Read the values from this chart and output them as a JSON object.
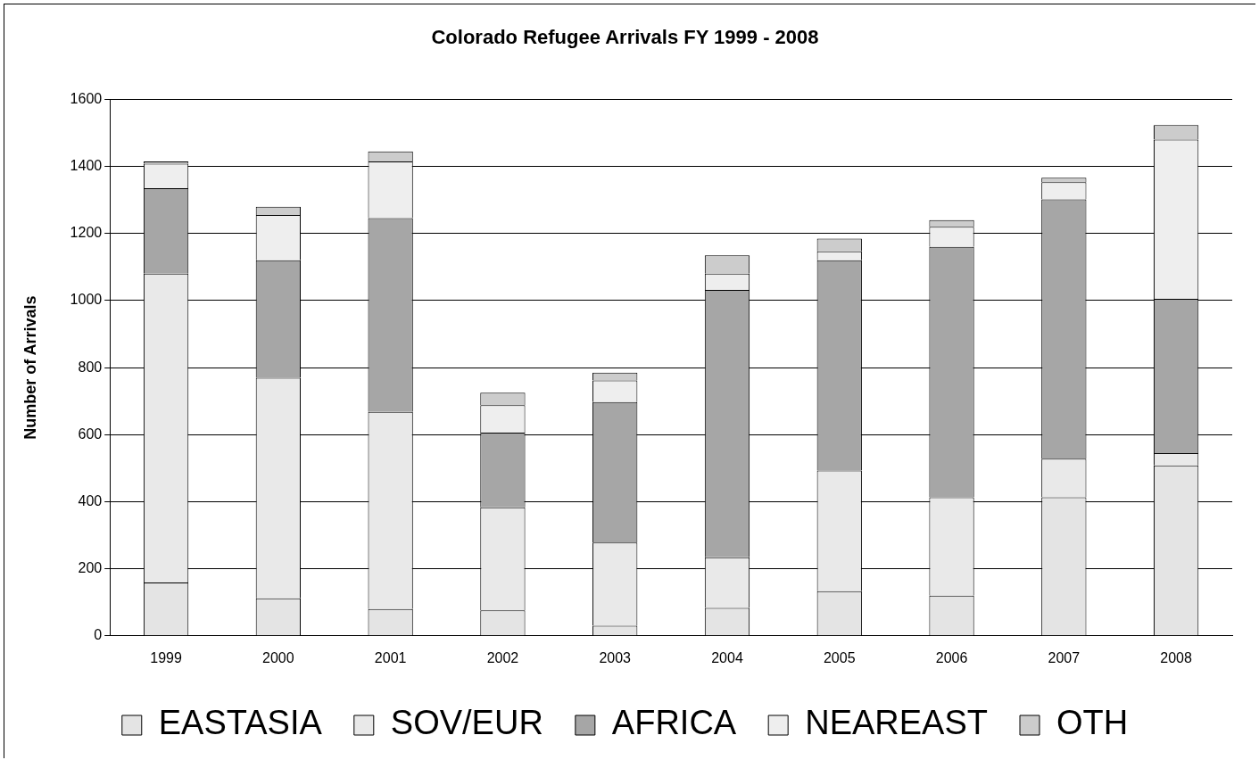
{
  "chart_data": {
    "type": "bar",
    "title": "Colorado Refugee Arrivals FY 1999 - 2008",
    "ylabel": "Number of Arrivals",
    "categories": [
      "1999",
      "2000",
      "2001",
      "2002",
      "2003",
      "2004",
      "2005",
      "2006",
      "2007",
      "2008"
    ],
    "stacked": true,
    "series": [
      {
        "name": "EASTASIA",
        "color": "#e4e4e4",
        "values": [
          159,
          112,
          80,
          76,
          30,
          83,
          133,
          120,
          413,
          508
        ]
      },
      {
        "name": "SOV/EUR",
        "color": "#e9e9e9",
        "values": [
          921,
          658,
          588,
          307,
          248,
          151,
          360,
          293,
          115,
          37
        ]
      },
      {
        "name": "AFRICA",
        "color": "#a6a6a6",
        "values": [
          255,
          350,
          578,
          223,
          419,
          798,
          627,
          747,
          774,
          460
        ]
      },
      {
        "name": "NEAREAST",
        "color": "#eeeeee",
        "values": [
          73,
          135,
          169,
          82,
          65,
          48,
          27,
          60,
          51,
          475
        ]
      },
      {
        "name": "OTH",
        "color": "#cccccc",
        "values": [
          7,
          25,
          30,
          37,
          23,
          55,
          38,
          20,
          13,
          43
        ]
      }
    ],
    "ylim": [
      0,
      1600
    ],
    "yticks": [
      0,
      200,
      400,
      600,
      800,
      1000,
      1200,
      1400,
      1600
    ],
    "grid": "y",
    "legend": "bottom"
  }
}
